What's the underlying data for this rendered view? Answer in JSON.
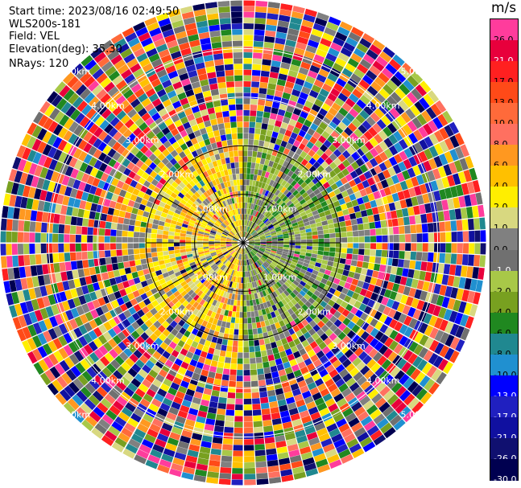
{
  "info": {
    "start_time": "Start time: 2023/08/16 02:49:50",
    "instrument": "WLS200s-181",
    "field": "Field: VEL",
    "elevation": "Elevation(deg): 35.30",
    "nrays": "NRays: 120"
  },
  "colorbar": {
    "unit": "m/s",
    "levels": [
      {
        "label": "26.0",
        "color": "#ff3c9c",
        "text": "#000000"
      },
      {
        "label": "21.0",
        "color": "#e8003c",
        "text": "#ffffff"
      },
      {
        "label": "17.0",
        "color": "#ff2020",
        "text": "#000000"
      },
      {
        "label": "13.0",
        "color": "#ff4a18",
        "text": "#000000"
      },
      {
        "label": "10.0",
        "color": "#ff6a3a",
        "text": "#000000"
      },
      {
        "label": "8.0",
        "color": "#ff7060",
        "text": "#000000"
      },
      {
        "label": "6.0",
        "color": "#ff9820",
        "text": "#000000"
      },
      {
        "label": "4.0",
        "color": "#ffc000",
        "text": "#000000"
      },
      {
        "label": "2.0",
        "color": "#ffee00",
        "text": "#000000"
      },
      {
        "label": "1.0",
        "color": "#d8d880",
        "text": "#000000"
      },
      {
        "label": "0.0",
        "color": "#808080",
        "text": "#000000"
      },
      {
        "label": "-1.0",
        "color": "#707070",
        "text": "#ffffff"
      },
      {
        "label": "-2.0",
        "color": "#a8c848",
        "text": "#000000"
      },
      {
        "label": "-4.0",
        "color": "#78a020",
        "text": "#000000"
      },
      {
        "label": "-6.0",
        "color": "#208820",
        "text": "#000000"
      },
      {
        "label": "-8.0",
        "color": "#208890",
        "text": "#000000"
      },
      {
        "label": "-10.0",
        "color": "#2090d0",
        "text": "#000000"
      },
      {
        "label": "-13.0",
        "color": "#0000ff",
        "text": "#ffffff"
      },
      {
        "label": "-17.0",
        "color": "#2020c0",
        "text": "#ffffff"
      },
      {
        "label": "-21.0",
        "color": "#1010a0",
        "text": "#ffffff"
      },
      {
        "label": "-26.0",
        "color": "#101070",
        "text": "#ffffff"
      },
      {
        "label": "-30.0",
        "color": "#000050",
        "text": "#ffffff"
      }
    ]
  },
  "chart_data": {
    "type": "heatmap",
    "projection": "polar PPI",
    "field": "VEL",
    "units": "m/s",
    "color_range": [
      -30.0,
      26.0
    ],
    "range_rings_km": [
      1.0,
      2.0,
      3.0,
      4.0,
      5.0
    ],
    "ring_label_text": [
      "1.00km",
      "2.00km",
      "3.00km",
      "4.00km",
      "5.00km"
    ],
    "nrays": 120,
    "gates": 42,
    "max_range_km": 5.0,
    "coherent_range_km": 2.0,
    "sectors": [
      {
        "azimuth_range_deg": [
          0,
          180
        ],
        "dominant_velocity_ms": -4.0,
        "description": "north-east, greens"
      },
      {
        "azimuth_range_deg": [
          180,
          360
        ],
        "dominant_velocity_ms": 2.0,
        "description": "south-west, yellows"
      }
    ],
    "outer_region": "noisy velocities spanning full scale beyond 2 km"
  }
}
